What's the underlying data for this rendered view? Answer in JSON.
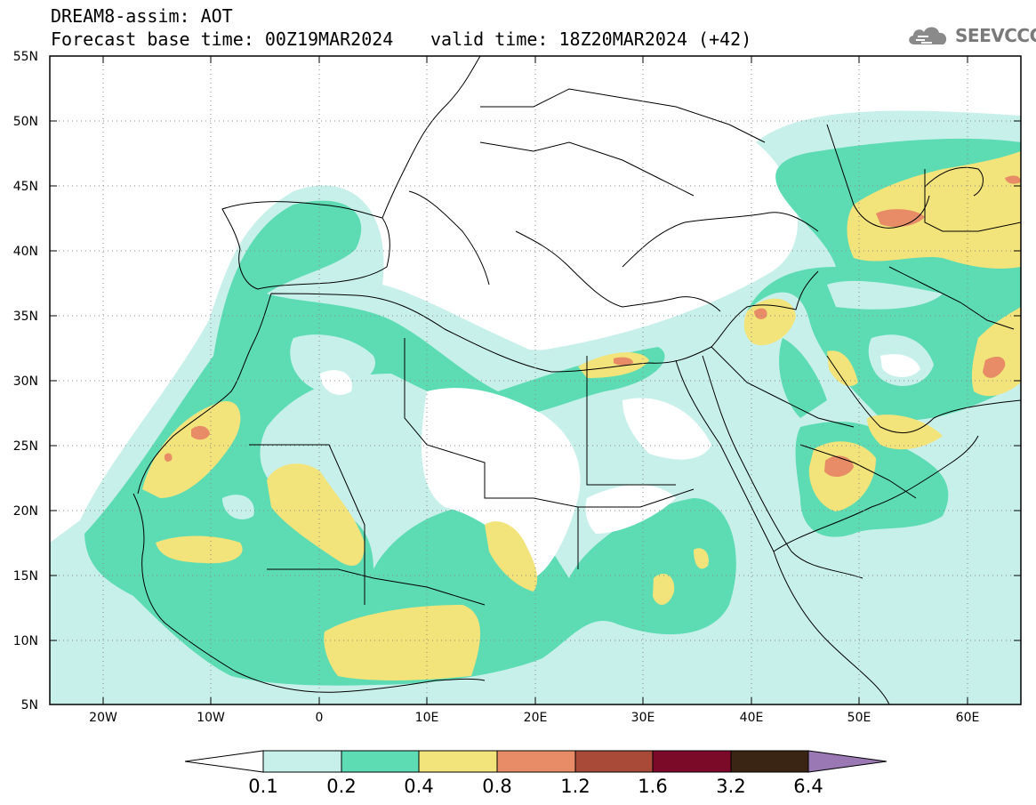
{
  "header": {
    "title": "DREAM8-assim: AOT",
    "base_time": "Forecast base time: 00Z19MAR2024",
    "valid_time": "valid time: 18Z20MAR2024 (+42)"
  },
  "logo": {
    "text": "SEEVCCC",
    "icon": "cloud-icon"
  },
  "map": {
    "lat_labels": [
      "55N",
      "50N",
      "45N",
      "40N",
      "35N",
      "30N",
      "25N",
      "20N",
      "15N",
      "10N",
      "5N"
    ],
    "lon_labels": [
      "20W",
      "10W",
      "0",
      "10E",
      "20E",
      "30E",
      "40E",
      "50E",
      "60E"
    ],
    "grid": "dotted"
  },
  "colorbar": {
    "levels": [
      "0.1",
      "0.2",
      "0.4",
      "0.8",
      "1.2",
      "1.6",
      "3.2",
      "6.4"
    ],
    "colors": [
      "#c8f0ea",
      "#5ddcb4",
      "#f2e37a",
      "#e78c66",
      "#a84a37",
      "#7a0a28",
      "#3a2414",
      "#9a78b4"
    ]
  }
}
